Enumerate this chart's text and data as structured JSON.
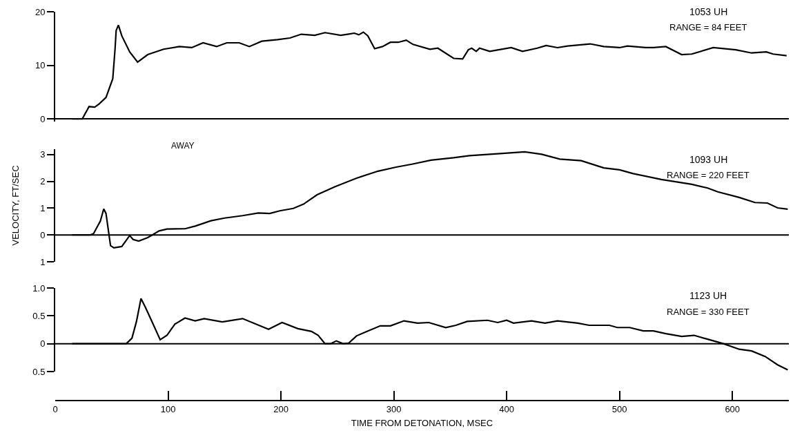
{
  "chart_data": [
    {
      "type": "line",
      "color": "#000000",
      "marker": "none",
      "line_style": "solid",
      "tick_labels": "y",
      "xlim": [
        0,
        650
      ],
      "ylim": [
        -0.5,
        20
      ],
      "yticks": [
        0,
        10,
        20
      ],
      "ref_lines": [
        {
          "axis": "y",
          "value": 0,
          "color": "#000000"
        }
      ],
      "annotations": [
        "1053 UH",
        "RANGE = 84 FEET"
      ],
      "x": [
        15,
        24,
        30,
        35,
        39,
        45,
        51,
        53,
        54,
        56,
        59,
        66,
        73,
        82,
        96,
        110,
        121,
        131,
        143,
        152,
        163,
        172,
        183,
        197,
        208,
        218,
        230,
        239,
        253,
        265,
        269,
        273,
        277,
        283,
        290,
        297,
        304,
        311,
        317,
        332,
        339,
        353,
        361,
        366,
        369,
        373,
        376,
        385,
        404,
        414,
        427,
        435,
        445,
        454,
        474,
        486,
        500,
        507,
        523,
        530,
        541,
        555,
        564,
        583,
        603,
        617,
        630,
        636,
        648
      ],
      "values": [
        0,
        0,
        2.3,
        2.2,
        2.8,
        4.0,
        7.5,
        13,
        16.5,
        17.5,
        15.5,
        12.5,
        10.6,
        12.0,
        13.0,
        13.5,
        13.3,
        14.2,
        13.5,
        14.2,
        14.2,
        13.5,
        14.5,
        14.8,
        15.1,
        15.8,
        15.6,
        16.1,
        15.6,
        16.0,
        15.7,
        16.2,
        15.5,
        13.1,
        13.5,
        14.3,
        14.3,
        14.7,
        13.9,
        13.0,
        13.2,
        11.3,
        11.2,
        12.9,
        13.2,
        12.6,
        13.2,
        12.6,
        13.3,
        12.6,
        13.2,
        13.7,
        13.3,
        13.6,
        14.0,
        13.5,
        13.3,
        13.6,
        13.3,
        13.3,
        13.5,
        12.0,
        12.1,
        13.3,
        12.9,
        12.3,
        12.5,
        12.1,
        11.8
      ]
    },
    {
      "type": "line",
      "color": "#000000",
      "marker": "none",
      "line_style": "solid",
      "tick_labels": "y",
      "xlim": [
        0,
        650
      ],
      "ylim": [
        -1,
        3.2
      ],
      "yticks": [
        {
          "value": -1,
          "label": "1"
        },
        0,
        1,
        2,
        3
      ],
      "ylabel": "VELOCITY, FT/SEC",
      "ref_lines": [
        {
          "axis": "y",
          "value": 0,
          "color": "#000000"
        }
      ],
      "annotations": [
        "AWAY",
        "1093 UH",
        "RANGE = 220 FEET"
      ],
      "x": [
        15,
        31,
        34,
        40,
        43,
        45,
        49,
        52,
        59,
        66,
        69,
        74,
        82,
        86,
        92,
        99,
        115,
        124,
        138,
        150,
        166,
        180,
        190,
        199,
        211,
        220,
        232,
        248,
        267,
        286,
        302,
        316,
        333,
        353,
        367,
        392,
        416,
        431,
        447,
        466,
        486,
        500,
        512,
        537,
        564,
        578,
        587,
        606,
        620,
        631,
        640,
        649
      ],
      "values": [
        0,
        0,
        0.05,
        0.52,
        0.97,
        0.8,
        -0.4,
        -0.48,
        -0.43,
        -0.02,
        -0.17,
        -0.23,
        -0.1,
        0,
        0.15,
        0.22,
        0.23,
        0.33,
        0.53,
        0.63,
        0.72,
        0.82,
        0.8,
        0.9,
        0.99,
        1.15,
        1.5,
        1.8,
        2.12,
        2.38,
        2.53,
        2.64,
        2.79,
        2.88,
        2.96,
        3.03,
        3.1,
        3.01,
        2.83,
        2.77,
        2.5,
        2.43,
        2.29,
        2.07,
        1.89,
        1.75,
        1.61,
        1.4,
        1.21,
        1.19,
        1.01,
        0.96
      ]
    },
    {
      "type": "line",
      "color": "#000000",
      "marker": "none",
      "line_style": "solid",
      "xlim": [
        0,
        650
      ],
      "ylim": [
        -0.5,
        1
      ],
      "yticks": [
        {
          "value": -0.5,
          "label": "0.5"
        },
        0,
        0.5,
        {
          "value": 1,
          "label": "1.0"
        }
      ],
      "xticks": [
        0,
        100,
        200,
        300,
        400,
        500,
        600
      ],
      "xlabel": "TIME FROM DETONATION, MSEC",
      "ref_lines": [
        {
          "axis": "y",
          "value": 0,
          "color": "#000000"
        }
      ],
      "annotations": [
        "1123 UH",
        "RANGE = 330 FEET"
      ],
      "x": [
        15,
        63,
        68,
        72,
        76,
        80,
        87,
        93,
        99,
        106,
        115,
        124,
        132,
        148,
        166,
        189,
        201,
        215,
        227,
        233,
        239,
        244,
        249,
        255,
        260,
        267,
        276,
        288,
        297,
        309,
        321,
        331,
        346,
        355,
        365,
        383,
        392,
        400,
        406,
        422,
        434,
        445,
        463,
        473,
        491,
        498,
        509,
        521,
        530,
        541,
        555,
        566,
        578,
        592,
        606,
        617,
        629,
        640,
        649
      ],
      "values": [
        0,
        0,
        0.1,
        0.4,
        0.81,
        0.65,
        0.34,
        0.07,
        0.15,
        0.35,
        0.46,
        0.41,
        0.45,
        0.39,
        0.45,
        0.26,
        0.38,
        0.27,
        0.22,
        0.15,
        0,
        0,
        0.05,
        0,
        0.01,
        0.14,
        0.22,
        0.32,
        0.32,
        0.41,
        0.37,
        0.38,
        0.29,
        0.33,
        0.4,
        0.42,
        0.38,
        0.42,
        0.37,
        0.41,
        0.37,
        0.41,
        0.37,
        0.33,
        0.33,
        0.29,
        0.29,
        0.23,
        0.23,
        0.18,
        0.13,
        0.15,
        0.08,
        0,
        -0.1,
        -0.13,
        -0.23,
        -0.38,
        -0.47
      ]
    }
  ]
}
